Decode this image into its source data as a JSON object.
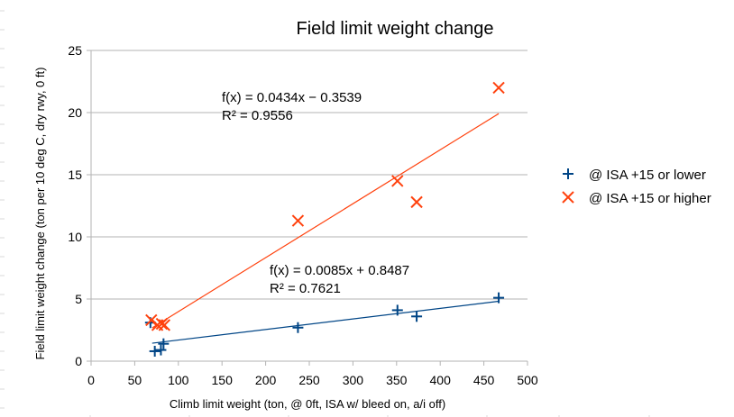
{
  "chart_data": {
    "type": "scatter",
    "title": "Field limit weight change",
    "xlabel": "Climb limit weight (ton, @ 0ft, ISA w/ bleed on, a/i off)",
    "ylabel": "Field limit weight change (ton per 10 deg C, dry rwy, 0 ft)",
    "xlim": [
      0,
      500
    ],
    "ylim": [
      0,
      25
    ],
    "x_ticks": [
      0,
      50,
      100,
      150,
      200,
      250,
      300,
      350,
      400,
      450,
      500
    ],
    "y_ticks": [
      0,
      5,
      10,
      15,
      20,
      25
    ],
    "grid": "horizontal",
    "legend_position": "right",
    "series": [
      {
        "name": "@ ISA +15 or lower",
        "marker": "plus",
        "color": "#004586",
        "points": [
          [
            68,
            3.1
          ],
          [
            73,
            0.8
          ],
          [
            80,
            0.9
          ],
          [
            83,
            1.4
          ],
          [
            237,
            2.7
          ],
          [
            351,
            4.1
          ],
          [
            373,
            3.6
          ],
          [
            467,
            5.1
          ]
        ],
        "trendline": {
          "slope": 0.0085,
          "intercept": 0.8487,
          "x_range": [
            70,
            467
          ],
          "equation": "f(x) = 0.0085x + 0.8487",
          "r_squared": "R² = 0.7621"
        }
      },
      {
        "name": "@ ISA +15 or higher",
        "marker": "cross",
        "color": "#ff420e",
        "points": [
          [
            69,
            3.3
          ],
          [
            76,
            2.9
          ],
          [
            81,
            3.0
          ],
          [
            84,
            2.9
          ],
          [
            237,
            11.3
          ],
          [
            351,
            14.5
          ],
          [
            373,
            12.8
          ],
          [
            467,
            22.0
          ]
        ],
        "trendline": {
          "slope": 0.0434,
          "intercept": -0.3539,
          "x_range": [
            70,
            467
          ],
          "equation": "f(x) = 0.0434x − 0.3539",
          "r_squared": "R² = 0.9556"
        }
      }
    ]
  }
}
